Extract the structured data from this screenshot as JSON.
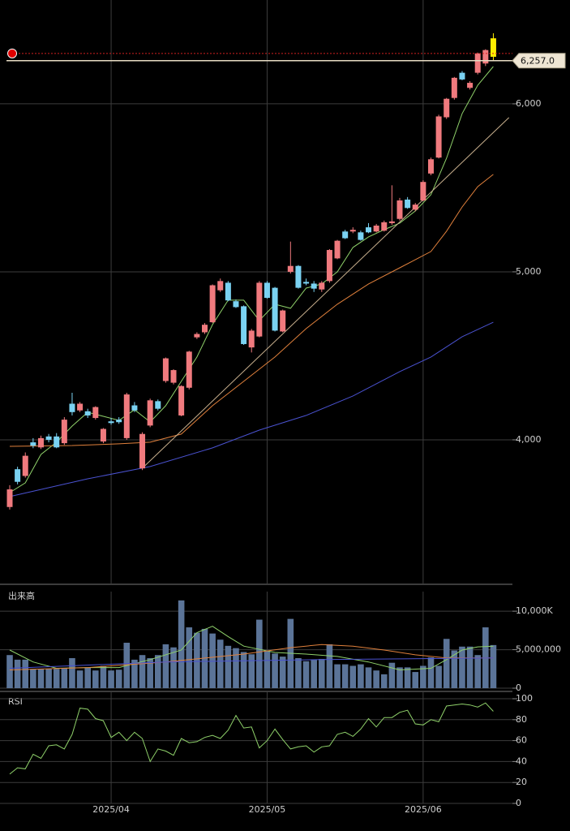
{
  "chart_data": [
    {
      "type": "candlestick",
      "categories": [
        null,
        null,
        null,
        null,
        null,
        null,
        null,
        null,
        null,
        null,
        null,
        null,
        null,
        "2025/04",
        null,
        null,
        null,
        null,
        null,
        null,
        null,
        null,
        null,
        null,
        null,
        null,
        null,
        null,
        null,
        null,
        null,
        null,
        null,
        "2025/05",
        null,
        null,
        null,
        null,
        null,
        null,
        null,
        null,
        null,
        null,
        null,
        null,
        null,
        null,
        null,
        null,
        null,
        null,
        null,
        "2025/06",
        null,
        null,
        null,
        null,
        null,
        null,
        null,
        null,
        null
      ],
      "open": [
        3600,
        3825,
        3785,
        3985,
        3955,
        4020,
        4020,
        3980,
        4215,
        4175,
        4170,
        4130,
        3990,
        4110,
        4120,
        4010,
        4205,
        3830,
        4085,
        4230,
        4350,
        4340,
        4145,
        4310,
        4610,
        4640,
        4700,
        4890,
        4935,
        4825,
        4795,
        4550,
        4615,
        4935,
        4905,
        4645,
        5000,
        5035,
        4940,
        4930,
        4895,
        4945,
        5080,
        5240,
        5240,
        5235,
        5265,
        5240,
        5245,
        5290,
        5315,
        5430,
        5370,
        5425,
        5585,
        5680,
        5920,
        6035,
        6185,
        6095,
        6185,
        6240,
        6280
      ],
      "high": [
        3730,
        3840,
        3925,
        4010,
        4025,
        4035,
        4040,
        4135,
        4280,
        4225,
        4185,
        4200,
        4070,
        4130,
        4135,
        4280,
        4225,
        4045,
        4245,
        4240,
        4490,
        4420,
        4325,
        4530,
        4640,
        4695,
        4925,
        4960,
        4945,
        4835,
        4800,
        4660,
        4945,
        4945,
        4910,
        4775,
        5180,
        5040,
        4960,
        4945,
        4945,
        5135,
        5190,
        5250,
        5265,
        5245,
        5290,
        5285,
        5305,
        5515,
        5440,
        5445,
        5410,
        5545,
        5680,
        5935,
        6035,
        6160,
        6195,
        6135,
        6305,
        6325,
        6420
      ],
      "low": [
        3585,
        3735,
        3775,
        3950,
        3945,
        3985,
        3950,
        3970,
        4145,
        4165,
        4130,
        4120,
        3980,
        4090,
        4095,
        4000,
        4165,
        3820,
        4075,
        4175,
        4340,
        4330,
        4140,
        4300,
        4600,
        4630,
        4695,
        4880,
        4825,
        4785,
        4565,
        4520,
        4610,
        4840,
        4645,
        4640,
        4990,
        4900,
        4920,
        4880,
        4880,
        4935,
        5075,
        5195,
        5230,
        5185,
        5230,
        5235,
        5240,
        5280,
        5305,
        5375,
        5360,
        5420,
        5575,
        5675,
        5910,
        6025,
        6140,
        6085,
        6175,
        6225,
        6255
      ],
      "close": [
        3705,
        3750,
        3905,
        3965,
        4010,
        4000,
        3955,
        4120,
        4165,
        4215,
        4145,
        4195,
        4065,
        4100,
        4105,
        4270,
        4175,
        4035,
        4235,
        4185,
        4485,
        4415,
        4320,
        4525,
        4630,
        4685,
        4920,
        4945,
        4830,
        4790,
        4570,
        4650,
        4935,
        4845,
        4650,
        4770,
        5035,
        4905,
        4930,
        4900,
        4935,
        5130,
        5185,
        5200,
        5250,
        5190,
        5235,
        5275,
        5295,
        5300,
        5425,
        5380,
        5400,
        5535,
        5670,
        5925,
        6030,
        6155,
        6145,
        6125,
        6300,
        6320,
        6390
      ],
      "colors": {
        "up": "#f07a7e",
        "down": "#7ad2f2",
        "current": "#ffee00"
      },
      "ylim": [
        3140,
        6618
      ],
      "yticks": [
        {
          "value": 4000,
          "label": "4,000"
        },
        {
          "value": 5000,
          "label": "5,000"
        },
        {
          "value": 6000,
          "label": "6,000"
        }
      ],
      "lines": [
        {
          "color": "#8fd16a",
          "x": [
            0,
            2,
            4,
            6,
            8,
            10,
            12,
            14,
            16,
            18,
            20,
            22,
            24,
            26,
            28,
            30,
            32,
            34,
            36,
            38,
            40,
            42,
            44,
            46,
            48,
            50,
            52,
            54,
            56,
            58,
            60,
            62
          ],
          "values": [
            3686,
            3744,
            3913,
            3986,
            4082,
            4164,
            4140,
            4116,
            4179,
            4106,
            4203,
            4348,
            4493,
            4686,
            4831,
            4831,
            4710,
            4807,
            4783,
            4903,
            4928,
            5000,
            5145,
            5208,
            5251,
            5290,
            5362,
            5459,
            5676,
            5942,
            6111,
            6222
          ]
        },
        {
          "color": "#e0803c",
          "x": [
            0,
            8,
            14,
            18,
            22,
            26,
            30,
            34,
            38,
            42,
            46,
            50,
            54,
            56,
            58,
            60,
            62
          ],
          "values": [
            3961,
            3966,
            3976,
            3986,
            4034,
            4203,
            4348,
            4493,
            4662,
            4807,
            4928,
            5024,
            5121,
            5242,
            5386,
            5507,
            5580
          ]
        },
        {
          "color": "#4a52d0",
          "x": [
            0,
            10,
            18,
            26,
            32,
            38,
            44,
            50,
            54,
            58,
            62
          ],
          "values": [
            3662,
            3768,
            3841,
            3952,
            4058,
            4145,
            4261,
            4406,
            4493,
            4614,
            4700
          ]
        },
        {
          "color": "#c9b08e",
          "x": [
            17,
            64
          ],
          "values": [
            3831,
            5918
          ]
        }
      ],
      "last_price": {
        "value": 6257,
        "label": "6,257.0"
      },
      "alert_price": 6300
    },
    {
      "type": "bar",
      "title": "出来高",
      "values": [
        4300000,
        3700000,
        3700000,
        2500000,
        2500000,
        2500000,
        2500000,
        2600000,
        3900000,
        2300000,
        2700000,
        2300000,
        2900000,
        2300000,
        2400000,
        5900000,
        3700000,
        4300000,
        3900000,
        4300000,
        5700000,
        5300000,
        11400000,
        7900000,
        7200000,
        7700000,
        7100000,
        6300000,
        5500000,
        5200000,
        4700000,
        4400000,
        8900000,
        4900000,
        4500000,
        4100000,
        9000000,
        3900000,
        3500000,
        3700000,
        3800000,
        5700000,
        3100000,
        3100000,
        2900000,
        3100000,
        2700000,
        2300000,
        1800000,
        3300000,
        2700000,
        2700000,
        2100000,
        2900000,
        4000000,
        2900000,
        6400000,
        4900000,
        5400000,
        5400000,
        4300000,
        7900000,
        5600000
      ],
      "color": "#5b7498",
      "ylim": [
        0,
        11700000
      ],
      "yticks": [
        0,
        {
          "value": 5000000,
          "label": "5,000,000"
        },
        {
          "value": 10000000,
          "label": "10,000K"
        }
      ],
      "lines": [
        {
          "color": "#8fd16a",
          "x": [
            0,
            3,
            6,
            10,
            14,
            18,
            22,
            24,
            26,
            28,
            30,
            34,
            38,
            42,
            46,
            50,
            54,
            56,
            58,
            60,
            62
          ],
          "values": [
            4950000,
            3400000,
            2580000,
            2680000,
            2680000,
            3710000,
            4950000,
            7220000,
            8040000,
            6700000,
            5460000,
            4640000,
            4430000,
            4120000,
            3400000,
            2370000,
            2580000,
            3710000,
            4950000,
            5360000,
            5460000
          ]
        },
        {
          "color": "#e0803c",
          "x": [
            0,
            10,
            20,
            30,
            36,
            40,
            44,
            48,
            52,
            56,
            62
          ],
          "values": [
            2370000,
            2680000,
            3400000,
            4430000,
            5260000,
            5670000,
            5460000,
            4950000,
            4330000,
            3920000,
            3920000
          ]
        },
        {
          "color": "#4a52d0",
          "x": [
            0,
            20,
            40,
            62
          ],
          "values": [
            2580000,
            3400000,
            3710000,
            3920000
          ]
        }
      ]
    },
    {
      "type": "line",
      "title": "RSI",
      "values": [
        28,
        34,
        33,
        47,
        43,
        55,
        56,
        52,
        66,
        91,
        90,
        81,
        79,
        63,
        68,
        60,
        68,
        62,
        40,
        52,
        50,
        46,
        62,
        58,
        59,
        63,
        65,
        62,
        70,
        84,
        72,
        73,
        53,
        60,
        71,
        61,
        52,
        54,
        55,
        49,
        54,
        55,
        66,
        68,
        64,
        71,
        81,
        73,
        82,
        82,
        87,
        89,
        76,
        75,
        80,
        78,
        93,
        94,
        95,
        94,
        92,
        96,
        88
      ],
      "color": "#8fd16a",
      "ylim": [
        0,
        100
      ],
      "yticks": [
        0,
        20,
        40,
        60,
        80,
        100
      ]
    }
  ]
}
